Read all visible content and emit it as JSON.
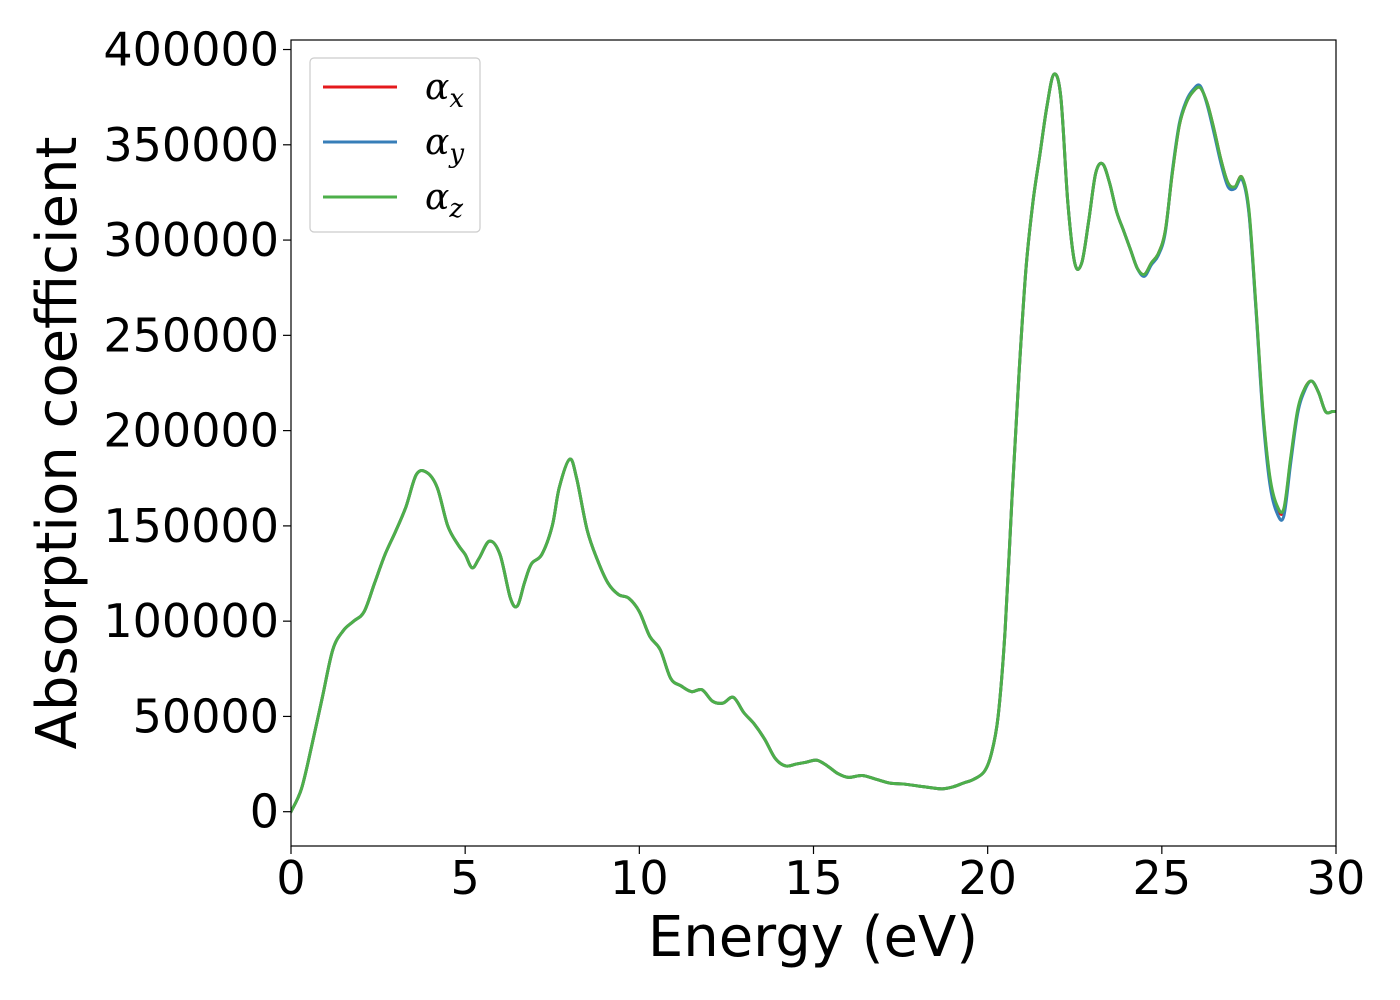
{
  "chart_data": {
    "type": "line",
    "title": "",
    "xlabel": "Energy (eV)",
    "ylabel": "Absorption coefficient",
    "xlim": [
      0,
      30
    ],
    "ylim": [
      -18000,
      405000
    ],
    "xticks": [
      0,
      5,
      10,
      15,
      20,
      25,
      30
    ],
    "yticks": [
      0,
      50000,
      100000,
      150000,
      200000,
      250000,
      300000,
      350000,
      400000
    ],
    "xtick_labels": [
      "0",
      "5",
      "10",
      "15",
      "20",
      "25",
      "30"
    ],
    "ytick_labels": [
      "0",
      "50000",
      "100000",
      "150000",
      "200000",
      "250000",
      "300000",
      "350000",
      "400000"
    ],
    "grid": false,
    "legend_position": "top-left",
    "series": [
      {
        "name": "α_x",
        "label_base": "α",
        "label_sub": "x",
        "color": "#e41a1c",
        "x": [
          0,
          0.3,
          0.6,
          0.9,
          1.2,
          1.5,
          1.8,
          2.1,
          2.4,
          2.7,
          3.0,
          3.3,
          3.6,
          3.9,
          4.2,
          4.5,
          4.8,
          5.0,
          5.2,
          5.4,
          5.7,
          6.0,
          6.3,
          6.5,
          6.7,
          6.9,
          7.2,
          7.5,
          7.7,
          8.0,
          8.2,
          8.5,
          8.8,
          9.1,
          9.4,
          9.7,
          10.0,
          10.3,
          10.6,
          10.9,
          11.2,
          11.5,
          11.8,
          12.1,
          12.4,
          12.7,
          13.0,
          13.3,
          13.6,
          13.9,
          14.2,
          14.5,
          14.8,
          15.1,
          15.4,
          15.7,
          16.0,
          16.4,
          16.8,
          17.2,
          17.6,
          18.0,
          18.4,
          18.7,
          19.0,
          19.3,
          19.6,
          19.9,
          20.1,
          20.3,
          20.5,
          20.7,
          20.9,
          21.1,
          21.3,
          21.5,
          21.7,
          21.9,
          22.1,
          22.3,
          22.5,
          22.7,
          22.9,
          23.1,
          23.3,
          23.5,
          23.7,
          23.9,
          24.1,
          24.3,
          24.5,
          24.7,
          24.9,
          25.1,
          25.3,
          25.5,
          25.7,
          25.9,
          26.1,
          26.3,
          26.5,
          26.7,
          26.9,
          27.1,
          27.3,
          27.5,
          27.7,
          27.9,
          28.1,
          28.3,
          28.5,
          28.7,
          28.9,
          29.1,
          29.3,
          29.5,
          29.7,
          29.9,
          30.0
        ],
        "y": [
          0,
          12000,
          35000,
          60000,
          85000,
          95000,
          100000,
          105000,
          120000,
          135000,
          147000,
          160000,
          177000,
          178000,
          170000,
          150000,
          140000,
          135000,
          128000,
          133000,
          142000,
          135000,
          112000,
          108000,
          120000,
          130000,
          135000,
          150000,
          170000,
          185000,
          175000,
          148000,
          132000,
          120000,
          114000,
          112000,
          105000,
          92000,
          85000,
          70000,
          66000,
          63000,
          64000,
          58000,
          57000,
          60000,
          52000,
          46000,
          38000,
          28000,
          24000,
          25000,
          26000,
          27000,
          24000,
          20000,
          18000,
          19000,
          17000,
          15000,
          14500,
          13500,
          12500,
          12000,
          13000,
          15000,
          17000,
          21000,
          30000,
          50000,
          95000,
          165000,
          230000,
          285000,
          320000,
          345000,
          370000,
          387000,
          375000,
          320000,
          288000,
          288000,
          310000,
          335000,
          340000,
          330000,
          315000,
          305000,
          295000,
          285000,
          282000,
          288000,
          293000,
          305000,
          335000,
          360000,
          372000,
          378000,
          380000,
          372000,
          358000,
          342000,
          330000,
          328000,
          333000,
          315000,
          265000,
          210000,
          175000,
          160000,
          158000,
          185000,
          210000,
          222000,
          226000,
          220000,
          210000,
          210000,
          210000
        ]
      },
      {
        "name": "α_y",
        "label_base": "α",
        "label_sub": "y",
        "color": "#377eb8",
        "x": [
          0,
          0.3,
          0.6,
          0.9,
          1.2,
          1.5,
          1.8,
          2.1,
          2.4,
          2.7,
          3.0,
          3.3,
          3.6,
          3.9,
          4.2,
          4.5,
          4.8,
          5.0,
          5.2,
          5.4,
          5.7,
          6.0,
          6.3,
          6.5,
          6.7,
          6.9,
          7.2,
          7.5,
          7.7,
          8.0,
          8.2,
          8.5,
          8.8,
          9.1,
          9.4,
          9.7,
          10.0,
          10.3,
          10.6,
          10.9,
          11.2,
          11.5,
          11.8,
          12.1,
          12.4,
          12.7,
          13.0,
          13.3,
          13.6,
          13.9,
          14.2,
          14.5,
          14.8,
          15.1,
          15.4,
          15.7,
          16.0,
          16.4,
          16.8,
          17.2,
          17.6,
          18.0,
          18.4,
          18.7,
          19.0,
          19.3,
          19.6,
          19.9,
          20.1,
          20.3,
          20.5,
          20.7,
          20.9,
          21.1,
          21.3,
          21.5,
          21.7,
          21.9,
          22.1,
          22.3,
          22.5,
          22.7,
          22.9,
          23.1,
          23.3,
          23.5,
          23.7,
          23.9,
          24.1,
          24.3,
          24.5,
          24.7,
          24.9,
          25.1,
          25.3,
          25.5,
          25.7,
          25.9,
          26.1,
          26.3,
          26.5,
          26.7,
          26.9,
          27.1,
          27.3,
          27.5,
          27.7,
          27.9,
          28.1,
          28.3,
          28.5,
          28.7,
          28.9,
          29.1,
          29.3,
          29.5,
          29.7,
          29.9,
          30.0
        ],
        "y": [
          0,
          12000,
          35000,
          60000,
          85000,
          95000,
          100000,
          105000,
          120000,
          135000,
          147000,
          160000,
          177000,
          178000,
          170000,
          150000,
          140000,
          135000,
          128000,
          133000,
          142000,
          135000,
          112000,
          108000,
          120000,
          130000,
          135000,
          150000,
          170000,
          185000,
          175000,
          148000,
          132000,
          120000,
          114000,
          112000,
          105000,
          92000,
          85000,
          70000,
          66000,
          63000,
          64000,
          58000,
          57000,
          60000,
          52000,
          46000,
          38000,
          28000,
          24000,
          25000,
          26000,
          27000,
          24000,
          20000,
          18000,
          19000,
          17000,
          15000,
          14500,
          13500,
          12500,
          12000,
          13000,
          15000,
          17000,
          21000,
          30000,
          50000,
          95000,
          165000,
          230000,
          285000,
          320000,
          345000,
          370000,
          387000,
          375000,
          320000,
          288000,
          288000,
          310000,
          335000,
          340000,
          330000,
          315000,
          305000,
          295000,
          285000,
          281000,
          287000,
          292000,
          304000,
          336000,
          361000,
          373000,
          379000,
          381000,
          371000,
          356000,
          340000,
          328000,
          327000,
          332000,
          314000,
          264000,
          208000,
          172000,
          157000,
          155000,
          183000,
          209000,
          221000,
          226000,
          220000,
          210000,
          210000,
          210000
        ]
      },
      {
        "name": "α_z",
        "label_base": "α",
        "label_sub": "z",
        "color": "#4daf4a",
        "x": [
          0,
          0.3,
          0.6,
          0.9,
          1.2,
          1.5,
          1.8,
          2.1,
          2.4,
          2.7,
          3.0,
          3.3,
          3.6,
          3.9,
          4.2,
          4.5,
          4.8,
          5.0,
          5.2,
          5.4,
          5.7,
          6.0,
          6.3,
          6.5,
          6.7,
          6.9,
          7.2,
          7.5,
          7.7,
          8.0,
          8.2,
          8.5,
          8.8,
          9.1,
          9.4,
          9.7,
          10.0,
          10.3,
          10.6,
          10.9,
          11.2,
          11.5,
          11.8,
          12.1,
          12.4,
          12.7,
          13.0,
          13.3,
          13.6,
          13.9,
          14.2,
          14.5,
          14.8,
          15.1,
          15.4,
          15.7,
          16.0,
          16.4,
          16.8,
          17.2,
          17.6,
          18.0,
          18.4,
          18.7,
          19.0,
          19.3,
          19.6,
          19.9,
          20.1,
          20.3,
          20.5,
          20.7,
          20.9,
          21.1,
          21.3,
          21.5,
          21.7,
          21.9,
          22.1,
          22.3,
          22.5,
          22.7,
          22.9,
          23.1,
          23.3,
          23.5,
          23.7,
          23.9,
          24.1,
          24.3,
          24.5,
          24.7,
          24.9,
          25.1,
          25.3,
          25.5,
          25.7,
          25.9,
          26.1,
          26.3,
          26.5,
          26.7,
          26.9,
          27.1,
          27.3,
          27.5,
          27.7,
          27.9,
          28.1,
          28.3,
          28.5,
          28.7,
          28.9,
          29.1,
          29.3,
          29.5,
          29.7,
          29.9,
          30.0
        ],
        "y": [
          0,
          12000,
          35000,
          60000,
          85000,
          95000,
          100000,
          105000,
          120000,
          135000,
          147000,
          160000,
          177000,
          178000,
          170000,
          150000,
          140000,
          135000,
          128000,
          133000,
          142000,
          135000,
          112000,
          108000,
          120000,
          130000,
          135000,
          150000,
          170000,
          185000,
          175000,
          148000,
          132000,
          120000,
          114000,
          112000,
          105000,
          92000,
          85000,
          70000,
          66000,
          63000,
          64000,
          58000,
          57000,
          60000,
          52000,
          46000,
          38000,
          28000,
          24000,
          25000,
          26000,
          27000,
          24000,
          20000,
          18000,
          19000,
          17000,
          15000,
          14500,
          13500,
          12500,
          12000,
          13000,
          15000,
          17000,
          21000,
          30000,
          50000,
          95000,
          165000,
          230000,
          285000,
          320000,
          345000,
          370000,
          387000,
          375000,
          320000,
          288000,
          288000,
          310000,
          335000,
          340000,
          330000,
          315000,
          305000,
          295000,
          285000,
          282000,
          288000,
          293000,
          305000,
          335000,
          360000,
          372000,
          378000,
          380000,
          372000,
          358000,
          342000,
          330000,
          328000,
          333000,
          316000,
          266000,
          211000,
          176000,
          161000,
          159000,
          186000,
          211000,
          222000,
          226000,
          220000,
          210000,
          210000,
          210000
        ]
      }
    ]
  }
}
